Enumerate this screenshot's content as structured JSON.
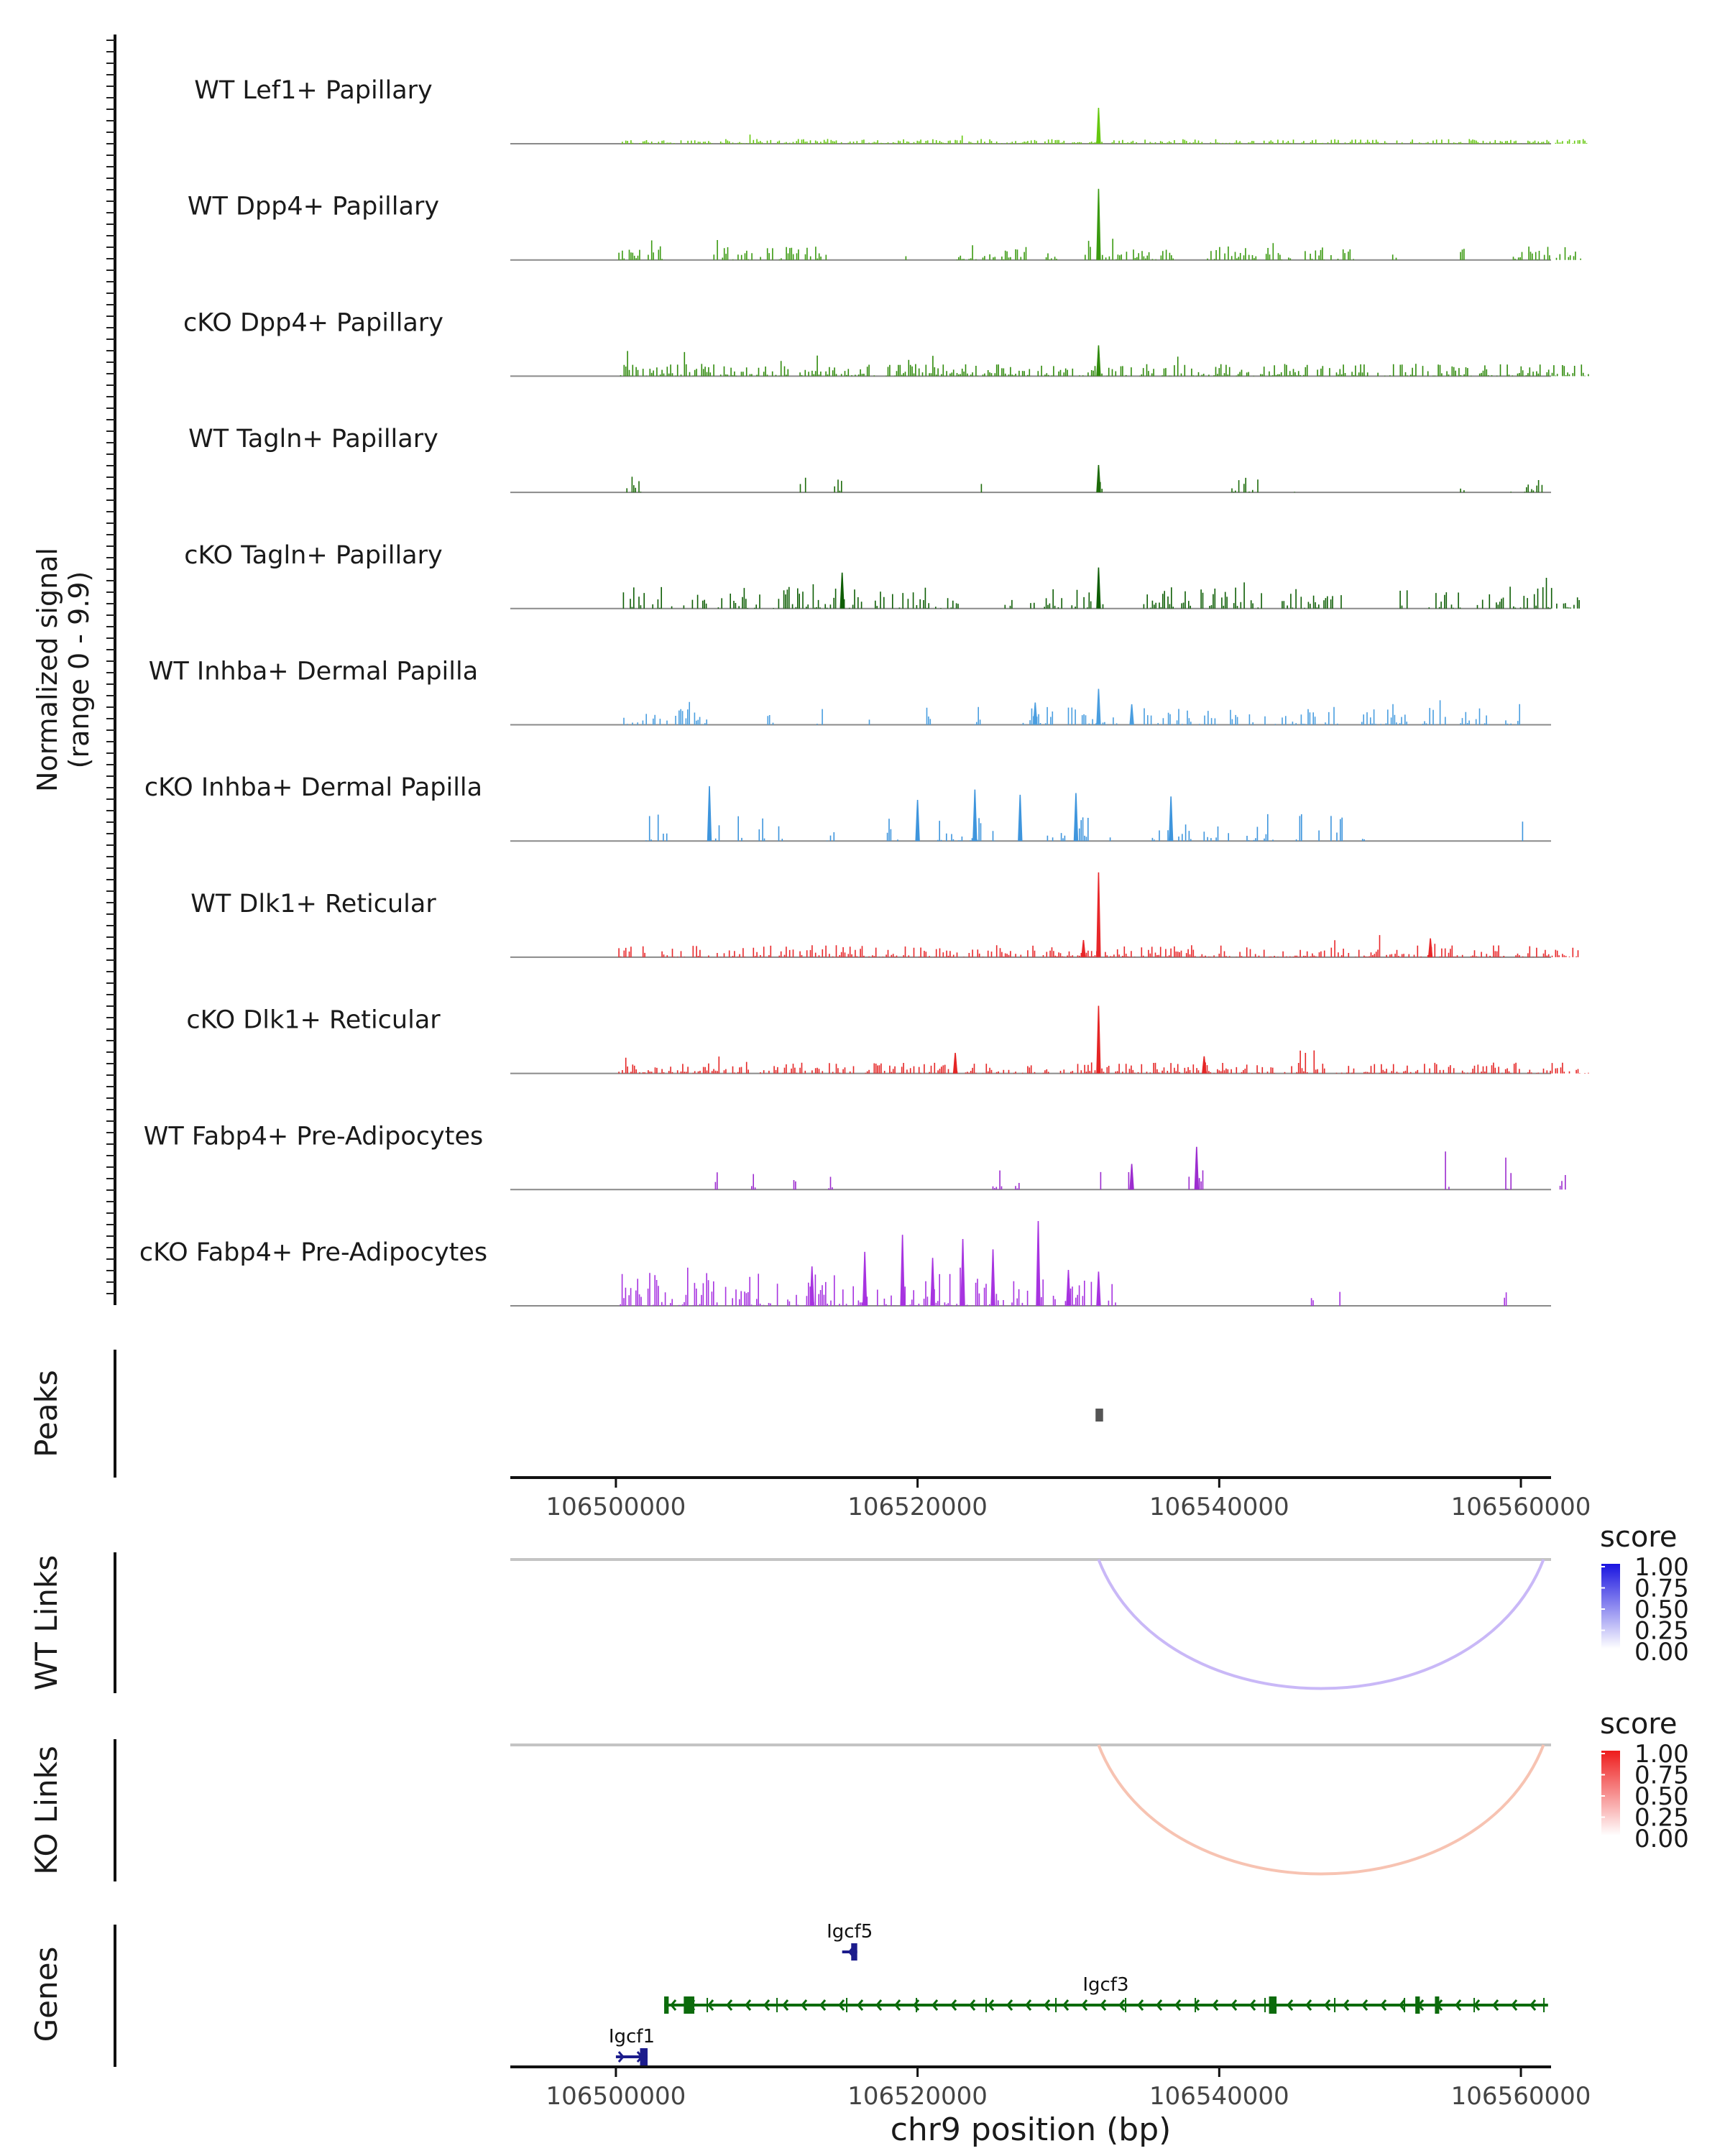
{
  "chart_data": {
    "type": "area",
    "title": "",
    "region": {
      "chrom": "chr9",
      "start": 106493000,
      "end": 106562000
    },
    "xlabel": "chr9 position (bp)",
    "x_ticks": [
      106500000,
      106520000,
      106540000,
      106560000
    ],
    "x_tick_labels": [
      "106500000",
      "106520000",
      "106540000",
      "106560000"
    ],
    "coverage": {
      "ylabel": "Normalized signal",
      "ylabel_range": "(range 0 - 9.9)",
      "ylim": [
        0,
        9.9
      ],
      "tracks": [
        {
          "name": "WT Lef1+ Papillary",
          "color": "#66c80f",
          "spans": [
            [
              106500200,
              106564400
            ]
          ],
          "density": 0.85,
          "base": 0.35,
          "big_peaks": [
            [
              106532000,
              4.2
            ]
          ]
        },
        {
          "name": "WT Dpp4+ Papillary",
          "color": "#3a9a10",
          "spans": [
            [
              106500200,
              106503200
            ],
            [
              106506500,
              106514000
            ],
            [
              106519000,
              106519300
            ],
            [
              106522500,
              106527500
            ],
            [
              106528300,
              106529300
            ],
            [
              106531000,
              106537000
            ],
            [
              106539000,
              106545000
            ],
            [
              106545700,
              106549000
            ],
            [
              106551500,
              106551800
            ],
            [
              106556000,
              106556300
            ],
            [
              106559500,
              106564000
            ]
          ],
          "density": 0.7,
          "base": 1.0,
          "big_peaks": [
            [
              106532000,
              8.3
            ]
          ]
        },
        {
          "name": "cKO Dpp4+ Papillary",
          "color": "#2f8a0b",
          "spans": [
            [
              106500200,
              106564600
            ]
          ],
          "density": 0.75,
          "base": 0.9,
          "big_peaks": [
            [
              106532000,
              3.6
            ]
          ]
        },
        {
          "name": "WT Tagln+ Papillary",
          "color": "#1d6b0a",
          "spans": [
            [
              106500500,
              106501800
            ],
            [
              106512000,
              106512600
            ],
            [
              106514500,
              106515000
            ],
            [
              106524000,
              106524500
            ],
            [
              106532000,
              106532300
            ],
            [
              106540500,
              106542600
            ],
            [
              106545000,
              106545300
            ],
            [
              106556000,
              106556400
            ],
            [
              106559000,
              106561500
            ]
          ],
          "density": 0.45,
          "base": 1.2,
          "big_peaks": [
            [
              106532000,
              3.2
            ]
          ]
        },
        {
          "name": "cKO Tagln+ Papillary",
          "color": "#0e5e05",
          "spans": [
            [
              106500500,
              106522700
            ],
            [
              106525800,
              106526300
            ],
            [
              106527500,
              106529800
            ],
            [
              106530000,
              106532500
            ],
            [
              106535000,
              106538300
            ],
            [
              106538800,
              106542900
            ],
            [
              106543600,
              106545800
            ],
            [
              106545800,
              106548700
            ],
            [
              106552000,
              106552500
            ],
            [
              106553800,
              106556000
            ],
            [
              106557000,
              106564000
            ]
          ],
          "density": 0.55,
          "base": 1.6,
          "big_peaks": [
            [
              106532000,
              4.8
            ],
            [
              106515000,
              4.2
            ]
          ]
        },
        {
          "name": "WT Inhba+ Dermal Papilla",
          "color": "#4a9ee0",
          "spans": [
            [
              106500300,
              106506100
            ],
            [
              106509500,
              106510700
            ],
            [
              106513000,
              106513800
            ],
            [
              106516800,
              106517100
            ],
            [
              106520500,
              106520900
            ],
            [
              106523800,
              106524200
            ],
            [
              106527000,
              106529000
            ],
            [
              106530000,
              106533100
            ],
            [
              106533200,
              106548000
            ],
            [
              106549000,
              106552500
            ],
            [
              106553500,
              106555000
            ],
            [
              106556000,
              106558000
            ],
            [
              106559000,
              106560200
            ]
          ],
          "density": 0.55,
          "base": 1.3,
          "big_peaks": [
            [
              106532000,
              4.2
            ],
            [
              106527800,
              2.6
            ],
            [
              106534200,
              2.4
            ]
          ]
        },
        {
          "name": "cKO Inhba+ Dermal Papilla",
          "color": "#3e95dd",
          "spans": [
            [
              106502000,
              106503500
            ],
            [
              106506500,
              106507000
            ],
            [
              106508000,
              106508500
            ],
            [
              106509500,
              106510500
            ],
            [
              106510800,
              106511200
            ],
            [
              106514000,
              106514500
            ],
            [
              106518000,
              106519000
            ],
            [
              106521000,
              106523000
            ],
            [
              106523500,
              106524200
            ],
            [
              106525000,
              106525800
            ],
            [
              106528500,
              106529800
            ],
            [
              106530500,
              106531500
            ],
            [
              106532200,
              106532900
            ],
            [
              106535000,
              106536800
            ],
            [
              106537200,
              106538500
            ],
            [
              106539000,
              106540000
            ],
            [
              106540500,
              106541000
            ],
            [
              106541500,
              106543600
            ],
            [
              106545000,
              106545500
            ],
            [
              106546500,
              106547500
            ],
            [
              106547800,
              106548200
            ],
            [
              106549500,
              106549800
            ],
            [
              106560000,
              106560300
            ]
          ],
          "density": 0.5,
          "base": 2.0,
          "big_peaks": [
            [
              106506200,
              6.4
            ],
            [
              106530500,
              5.6
            ],
            [
              106523800,
              6.0
            ],
            [
              106536800,
              5.2
            ],
            [
              106520000,
              4.8
            ],
            [
              106526800,
              5.4
            ]
          ]
        },
        {
          "name": "WT Dlk1+ Reticular",
          "color": "#e8272a",
          "spans": [
            [
              106500200,
              106564000
            ]
          ],
          "density": 0.7,
          "base": 0.9,
          "big_peaks": [
            [
              106532000,
              9.9
            ],
            [
              106554000,
              2.2
            ],
            [
              106531000,
              2.0
            ]
          ]
        },
        {
          "name": "cKO Dlk1+ Reticular",
          "color": "#e52525",
          "spans": [
            [
              106500200,
              106564600
            ]
          ],
          "density": 0.75,
          "base": 0.8,
          "big_peaks": [
            [
              106532000,
              7.9
            ],
            [
              106522500,
              2.4
            ],
            [
              106539000,
              2.0
            ]
          ]
        },
        {
          "name": "WT Fabp4+ Pre-Adipocytes",
          "color": "#9c2ccf",
          "spans": [
            [
              106506600,
              106506800
            ],
            [
              106509000,
              106509300
            ],
            [
              106511800,
              106512200
            ],
            [
              106514000,
              106514400
            ],
            [
              106525000,
              106525600
            ],
            [
              106526500,
              106526800
            ],
            [
              106531800,
              106532200
            ],
            [
              106534000,
              106534400
            ],
            [
              106538000,
              106539000
            ],
            [
              106555000,
              106555400
            ],
            [
              106559000,
              106559400
            ],
            [
              106562600,
              106563000
            ]
          ],
          "density": 0.75,
          "base": 1.5,
          "big_peaks": [
            [
              106538500,
              5.0
            ],
            [
              106534200,
              3.0
            ]
          ]
        },
        {
          "name": "cKO Fabp4+ Pre-Adipocytes",
          "color": "#a733e0",
          "spans": [
            [
              106500300,
              106533200
            ],
            [
              106546000,
              106546300
            ],
            [
              106548000,
              106548300
            ],
            [
              106558800,
              106559200
            ]
          ],
          "density": 0.6,
          "base": 2.4,
          "big_peaks": [
            [
              106528000,
              9.9
            ],
            [
              106519000,
              8.3
            ],
            [
              106523000,
              7.8
            ],
            [
              106525000,
              6.6
            ],
            [
              106516500,
              6.3
            ],
            [
              106521000,
              5.6
            ],
            [
              106513000,
              4.6
            ],
            [
              106530000,
              4.2
            ],
            [
              106532000,
              4.0
            ]
          ]
        }
      ]
    },
    "peaks": {
      "label": "Peaks",
      "regions": [
        [
          106531800,
          106532300
        ]
      ]
    },
    "links": [
      {
        "label": "WT Links",
        "start": 106532000,
        "end": 106561500,
        "score": 0.35,
        "color": "#c9b8f7",
        "legend_title": "score",
        "legend_low": "#ffffff",
        "legend_high": "#1a14e0",
        "legend_ticks": [
          "1.00",
          "0.75",
          "0.50",
          "0.25",
          "0.00"
        ]
      },
      {
        "label": "KO Links",
        "start": 106532000,
        "end": 106561500,
        "score": 0.35,
        "color": "#f7c3b2",
        "legend_title": "score",
        "legend_low": "#ffffff",
        "legend_high": "#ee1c1c",
        "legend_ticks": [
          "1.00",
          "0.75",
          "0.50",
          "0.25",
          "0.00"
        ]
      }
    ],
    "genes": {
      "label": "Genes",
      "items": [
        {
          "name": "Igcf5",
          "start": 106515000,
          "end": 106516000,
          "strand": "-",
          "row": 0,
          "color": "#1c1c8c",
          "exons": [
            [
              106515600,
              106516000
            ]
          ]
        },
        {
          "name": "Igcf3",
          "start": 106503200,
          "end": 106561800,
          "strand": "-",
          "row": 1,
          "color": "#0c6b0c",
          "exons": [
            [
              106503200,
              106503500
            ],
            [
              106504500,
              106505200
            ],
            [
              106543300,
              106543800
            ],
            [
              106553000,
              106553300
            ],
            [
              106554300,
              106554500
            ]
          ]
        },
        {
          "name": "Igcf1",
          "start": 106500000,
          "end": 106502100,
          "strand": "+",
          "row": 2,
          "color": "#1c1c8c",
          "exons": [
            [
              106501600,
              106502100
            ]
          ]
        }
      ]
    }
  }
}
